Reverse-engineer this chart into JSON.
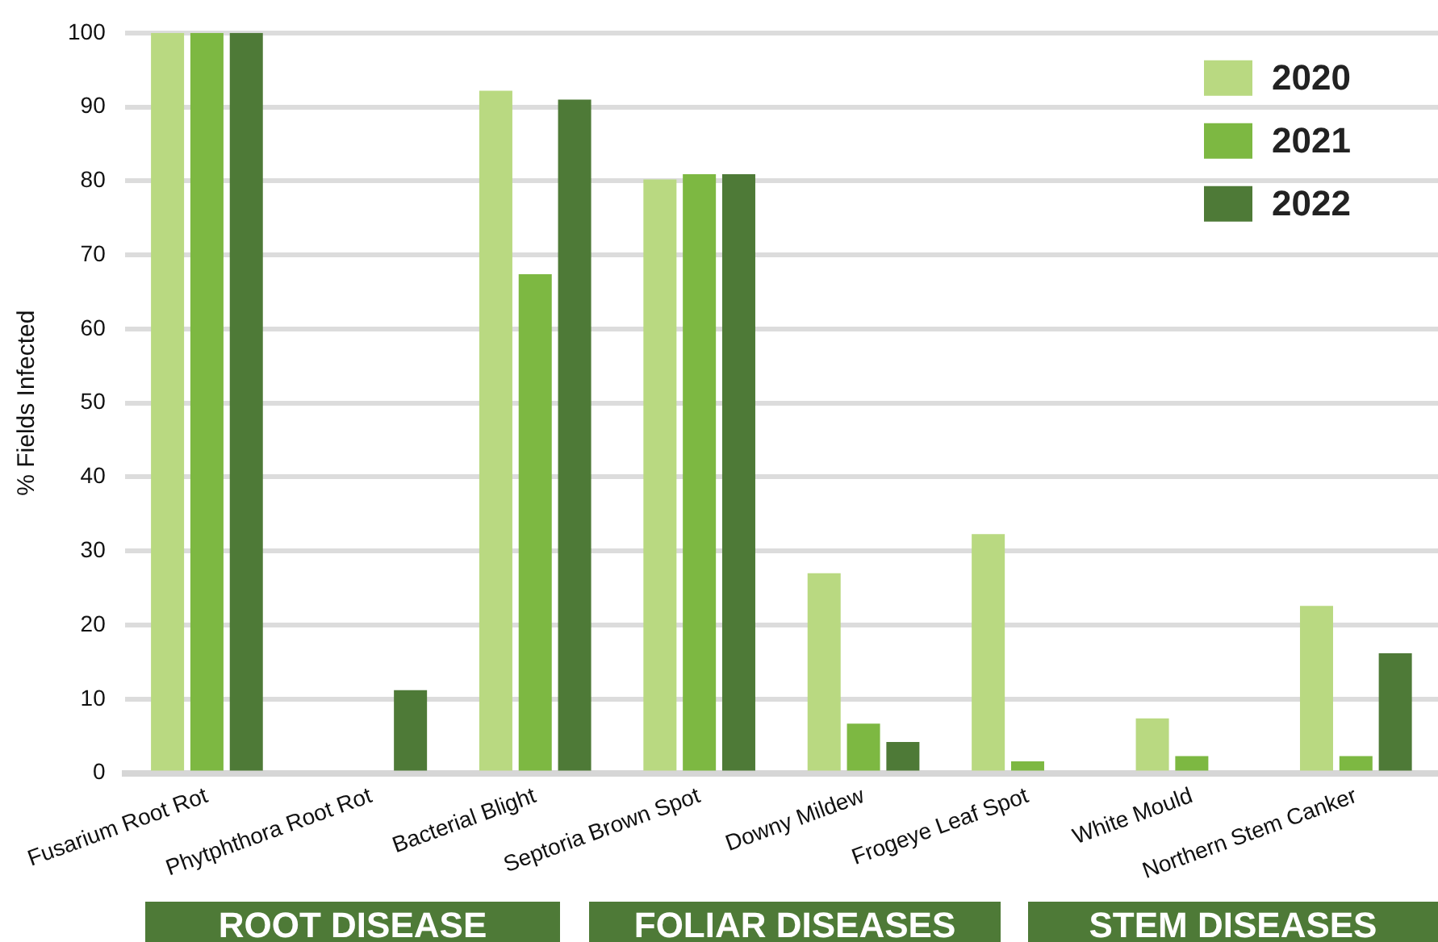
{
  "chart_data": {
    "type": "bar",
    "ylabel": "% Fields Infected",
    "categories": [
      "Fusarium Root Rot",
      "Phytphthora Root Rot",
      "Bacterial Blight",
      "Septoria Brown Spot",
      "Downy Mildew",
      "Frogeye Leaf Spot",
      "White Mould",
      "Northern Stem Canker"
    ],
    "series": [
      {
        "name": "2020",
        "color": "#b9d981",
        "values": [
          100,
          0,
          92.2,
          80.2,
          27.0,
          32.3,
          7.4,
          22.6
        ]
      },
      {
        "name": "2021",
        "color": "#7db842",
        "values": [
          100,
          0,
          67.4,
          80.9,
          6.7,
          1.6,
          2.3,
          2.3
        ]
      },
      {
        "name": "2022",
        "color": "#4e7a37",
        "values": [
          100,
          11.2,
          91.0,
          80.9,
          4.2,
          0,
          0,
          16.2
        ]
      }
    ],
    "ylim": [
      0,
      100
    ],
    "yticks": [
      0,
      10,
      20,
      30,
      40,
      50,
      60,
      70,
      80,
      90,
      100
    ],
    "grid": "y",
    "legend": "top right",
    "annotations": [
      "ROOT DISEASE",
      "FOLIAR DISEASES",
      "STEM DISEASES"
    ]
  }
}
